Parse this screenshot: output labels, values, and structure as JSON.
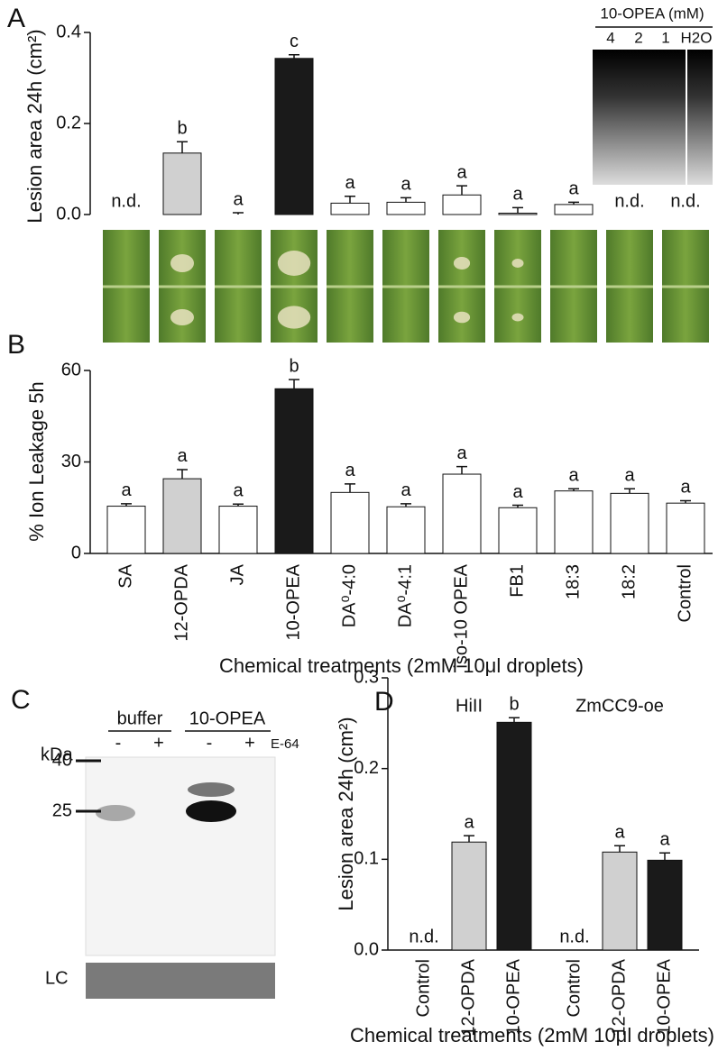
{
  "chart_data": [
    {
      "type": "bar",
      "panel_label": "A",
      "ylabel": "Lesion area 24h (cm²)",
      "values": [
        null,
        0.135,
        0,
        0.343,
        0.025,
        0.027,
        0.043,
        0.003,
        0.022,
        null,
        null
      ],
      "errors": [
        null,
        0.025,
        0.004,
        0.008,
        0.015,
        0.01,
        0.02,
        0.012,
        0.005,
        null,
        null
      ],
      "annotations": [
        "n.d.",
        "b",
        "a",
        "c",
        "a",
        "a",
        "a",
        "a",
        "a",
        "n.d.",
        "n.d."
      ],
      "colors": [
        "#ffffff",
        "#d0d0d0",
        "#ffffff",
        "#1a1a1a",
        "#ffffff",
        "#ffffff",
        "#ffffff",
        "#ffffff",
        "#ffffff",
        "#ffffff",
        "#ffffff"
      ],
      "ylim": [
        0,
        0.4
      ],
      "yticks": [
        {
          "value": 0,
          "label": "0.0"
        },
        0.2,
        0.4
      ],
      "inset": {
        "title": "10-OPEA (mM)",
        "lanes": [
          "4",
          "2",
          "1",
          "H2O"
        ]
      }
    },
    {
      "type": "bar",
      "panel_label": "B",
      "ylabel": "% Ion Leakage 5h",
      "xlabel": "Chemical treatments (2mM 10μl droplets)",
      "categories": [
        "SA",
        "12-OPDA",
        "JA",
        "10-OPEA",
        "DA⁰-4:0",
        "DA⁰-4:1",
        "iso-10 OPEA",
        "FB1",
        "18:3",
        "18:2",
        "Control"
      ],
      "values": [
        15.5,
        24.5,
        15.5,
        54,
        20,
        15.3,
        26,
        15,
        20.5,
        19.7,
        16.5
      ],
      "errors": [
        0.8,
        3,
        0.7,
        3,
        2.8,
        1,
        2.5,
        0.8,
        0.7,
        1.5,
        0.8
      ],
      "annotations": [
        "a",
        "a",
        "a",
        "b",
        "a",
        "a",
        "a",
        "a",
        "a",
        "a",
        "a"
      ],
      "colors": [
        "#ffffff",
        "#d0d0d0",
        "#ffffff",
        "#1a1a1a",
        "#ffffff",
        "#ffffff",
        "#ffffff",
        "#ffffff",
        "#ffffff",
        "#ffffff",
        "#ffffff"
      ],
      "ylim": [
        0,
        60
      ],
      "yticks": [
        0,
        30,
        60
      ]
    },
    {
      "type": "bar",
      "panel_label": "D",
      "ylabel": "Lesion area 24h (cm²)",
      "xlabel": "Chemical treatments (2mM 10μl droplets)",
      "group_labels": [
        "HiII",
        "ZmCC9-oe"
      ],
      "categories": [
        "Control",
        "12-OPDA",
        "10-OPEA",
        "Control",
        "12-OPDA",
        "10-OPEA"
      ],
      "values": [
        null,
        0.119,
        0.251,
        null,
        0.108,
        0.099
      ],
      "errors": [
        null,
        0.007,
        0.005,
        null,
        0.007,
        0.008
      ],
      "annotations": [
        "n.d.",
        "a",
        "b",
        "n.d.",
        "a",
        "a"
      ],
      "colors": [
        "#ffffff",
        "#d0d0d0",
        "#1a1a1a",
        "#ffffff",
        "#d0d0d0",
        "#1a1a1a"
      ],
      "ylim": [
        0,
        0.3
      ],
      "yticks": [
        {
          "value": 0,
          "label": "0.0"
        },
        0.1,
        0.2,
        0.3
      ]
    }
  ],
  "blot": {
    "panel_label": "C",
    "groups": [
      "buffer",
      "10-OPEA"
    ],
    "lanes": [
      "-",
      "+",
      "-",
      "+"
    ],
    "treatment": "E-64",
    "unit": "kDa",
    "markers": [
      "40",
      "25"
    ],
    "loading": "LC"
  }
}
